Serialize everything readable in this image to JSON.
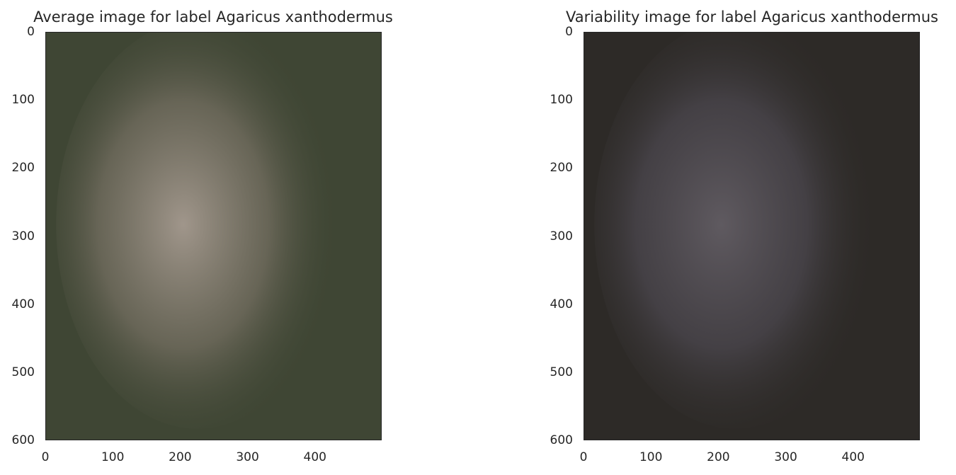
{
  "chart_data": [
    {
      "type": "image",
      "title": "Average image for label Agaricus xanthodermus",
      "xlim": [
        0,
        499
      ],
      "ylim": [
        600,
        0
      ],
      "xticks": [
        0,
        100,
        200,
        300,
        400
      ],
      "yticks": [
        0,
        100,
        200,
        300,
        400,
        500,
        600
      ],
      "colors": {
        "background": "#3f4634",
        "center": "#a0968b",
        "mid": "#6e6a5c"
      }
    },
    {
      "type": "image",
      "title": "Variability image for label Agaricus xanthodermus",
      "xlim": [
        0,
        499
      ],
      "ylim": [
        600,
        0
      ],
      "xticks": [
        0,
        100,
        200,
        300,
        400
      ],
      "yticks": [
        0,
        100,
        200,
        300,
        400,
        500,
        600
      ],
      "colors": {
        "background": "#2d2a27",
        "center": "#5f5a60",
        "mid": "#48444a"
      }
    }
  ]
}
